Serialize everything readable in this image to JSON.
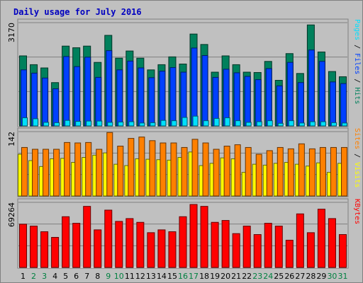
{
  "chart_data": {
    "type": "bar",
    "title": "Daily usage for July 2016",
    "categories": [
      "1",
      "2",
      "3",
      "4",
      "5",
      "6",
      "7",
      "8",
      "9",
      "10",
      "11",
      "12",
      "13",
      "14",
      "15",
      "16",
      "17",
      "18",
      "19",
      "20",
      "21",
      "22",
      "23",
      "24",
      "25",
      "26",
      "27",
      "28",
      "29",
      "30",
      "31"
    ],
    "weekend_days": [
      2,
      3,
      9,
      10,
      16,
      17,
      23,
      24,
      30,
      31
    ],
    "colors": {
      "title": "#0000c0",
      "hits": "#00805c",
      "files": "#0040ff",
      "pages": "#00e0ff",
      "visits": "#ffff00",
      "sites": "#ff8000",
      "kbytes": "#ff0000",
      "weekday_label": "#000000",
      "weekend_label": "#008040"
    },
    "panels": [
      {
        "id": "hits",
        "max_label": "3170",
        "ylim": [
          0,
          3170
        ],
        "legend": [
          {
            "text": "Pages",
            "color": "#00e0ff"
          },
          {
            "text": " / ",
            "color": "#000000"
          },
          {
            "text": "Files",
            "color": "#0040ff"
          },
          {
            "text": " / ",
            "color": "#000000"
          },
          {
            "text": "Hits",
            "color": "#00805c"
          }
        ],
        "series": [
          {
            "name": "Hits",
            "color": "#00805c",
            "values": [
              2150,
              1880,
              1780,
              1330,
              2450,
              2400,
              2450,
              1950,
              2780,
              2080,
              2300,
              2080,
              1720,
              1880,
              2120,
              1900,
              2820,
              2500,
              1650,
              2150,
              1880,
              1650,
              1640,
              1980,
              1400,
              2220,
              1610,
              3100,
              2270,
              1670,
              1510
            ]
          },
          {
            "name": "Files",
            "color": "#0040ff",
            "values": [
              1720,
              1620,
              1470,
              1140,
              2130,
              1820,
              2110,
              1490,
              2310,
              1720,
              1990,
              1780,
              1480,
              1680,
              1790,
              1650,
              2390,
              2160,
              1490,
              1740,
              1630,
              1520,
              1420,
              1760,
              1230,
              1950,
              1330,
              2330,
              1980,
              1350,
              1300
            ]
          },
          {
            "name": "Pages",
            "color": "#00e0ff",
            "values": [
              250,
              220,
              110,
              100,
              170,
              140,
              150,
              150,
              110,
              120,
              130,
              90,
              100,
              170,
              160,
              260,
              300,
              160,
              230,
              250,
              160,
              110,
              130,
              160,
              80,
              160,
              90,
              130,
              130,
              100,
              90
            ]
          }
        ]
      },
      {
        "id": "visits",
        "max_label": "142",
        "ylim": [
          0,
          142
        ],
        "legend": [
          {
            "text": "Sites",
            "color": "#ff8000"
          },
          {
            "text": " / ",
            "color": "#000000"
          },
          {
            "text": "Visits",
            "color": "#ffff00"
          }
        ],
        "series": [
          {
            "name": "Visits",
            "color": "#ffff00",
            "values": [
              92,
              78,
              65,
              82,
              83,
              74,
              85,
              90,
              95,
              70,
              67,
              82,
              81,
              80,
              79,
              85,
              97,
              67,
              72,
              84,
              82,
              52,
              70,
              68,
              72,
              74,
              70,
              66,
              73,
              52,
              72
            ]
          },
          {
            "name": "Sites",
            "color": "#ff8000",
            "values": [
              107,
              103,
              103,
              103,
              118,
              117,
              118,
              103,
              140,
              110,
              127,
              130,
              122,
              117,
              117,
              107,
              125,
              117,
              103,
              110,
              113,
              107,
              92,
              100,
              107,
              104,
              115,
              104,
              107,
              107,
              107
            ]
          }
        ]
      },
      {
        "id": "kbytes",
        "max_label": "69264",
        "ylim": [
          0,
          69264
        ],
        "legend": [
          {
            "text": "KBytes",
            "color": "#ff0000"
          }
        ],
        "series": [
          {
            "name": "KBytes",
            "color": "#ff0000",
            "values": [
              46000,
              44000,
              38000,
              32000,
              54000,
              47000,
              65000,
              40000,
              61000,
              49000,
              52000,
              48000,
              37000,
              40000,
              38000,
              54000,
              67000,
              65000,
              48000,
              50000,
              36000,
              44000,
              35000,
              47000,
              44000,
              29000,
              57000,
              37000,
              62000,
              52000,
              35000
            ]
          }
        ]
      }
    ]
  }
}
